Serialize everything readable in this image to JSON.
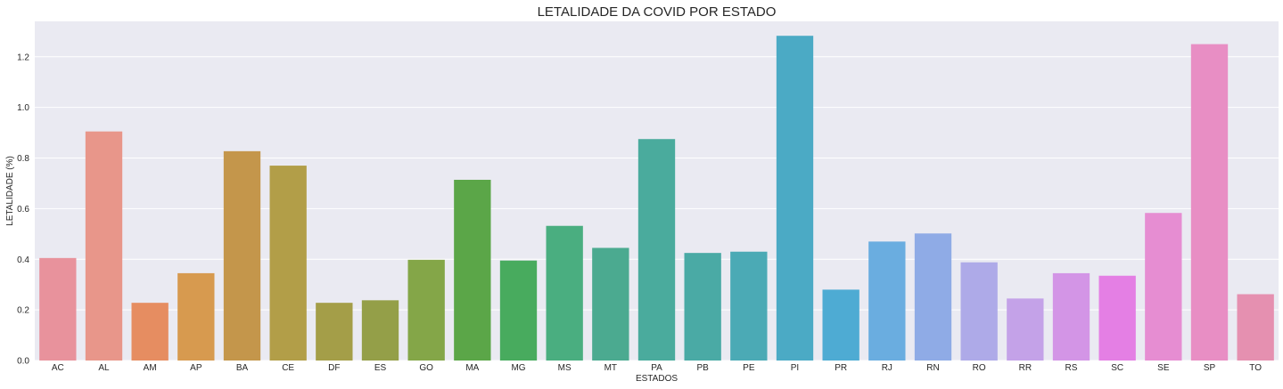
{
  "chart_data": {
    "type": "bar",
    "title": "LETALIDADE DA COVID POR ESTADO",
    "xlabel": "ESTADOS",
    "ylabel": "LETALIDADE (%)",
    "ylim": [
      0,
      1.34
    ],
    "yticks": [
      "0.0",
      "0.2",
      "0.4",
      "0.6",
      "0.8",
      "1.0",
      "1.2"
    ],
    "ytick_values": [
      0,
      0.2,
      0.4,
      0.6,
      0.8,
      1.0,
      1.2
    ],
    "grid": true,
    "categories": [
      "AC",
      "AL",
      "AM",
      "AP",
      "BA",
      "CE",
      "DF",
      "ES",
      "GO",
      "MA",
      "MG",
      "MS",
      "MT",
      "PA",
      "PB",
      "PE",
      "PI",
      "PR",
      "RJ",
      "RN",
      "RO",
      "RR",
      "RS",
      "SC",
      "SE",
      "SP",
      "TO"
    ],
    "values": [
      0.405,
      0.905,
      0.228,
      0.345,
      0.827,
      0.77,
      0.228,
      0.238,
      0.398,
      0.714,
      0.395,
      0.532,
      0.445,
      0.875,
      0.425,
      0.43,
      1.283,
      0.28,
      0.47,
      0.502,
      0.388,
      0.245,
      0.345,
      0.335,
      0.583,
      1.25,
      0.262
    ],
    "colors": [
      "#e8929c",
      "#e8968a",
      "#e68d61",
      "#d79a4f",
      "#c4964b",
      "#b29e48",
      "#a49e48",
      "#949f48",
      "#84a648",
      "#5ba648",
      "#48ab5e",
      "#4aae80",
      "#4baa90",
      "#4aab9d",
      "#4aaaa5",
      "#4baab5",
      "#4baac5",
      "#4eabd3",
      "#6aade0",
      "#8fabe6",
      "#aeaae8",
      "#c4a2e8",
      "#d395e6",
      "#e47fe4",
      "#e68dd2",
      "#e88ec4",
      "#e590b0"
    ],
    "style": {
      "background": "#eaeaf2",
      "grid_color": "#ffffff",
      "text_color": "#262626"
    }
  }
}
